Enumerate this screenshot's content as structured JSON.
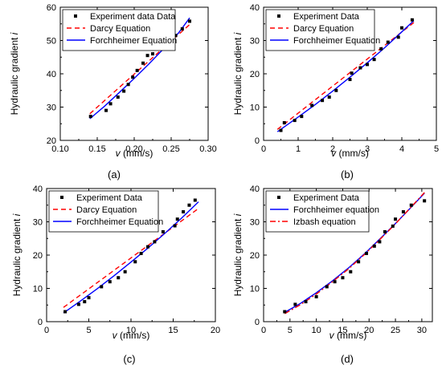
{
  "colors": {
    "experiment": "#000000",
    "darcy": "#ff0000",
    "forchheimer": "#0000ff",
    "izbash": "#ff0000"
  },
  "chart_data": [
    {
      "id": "a",
      "type": "scatter",
      "caption": "(a)",
      "xlabel_var": "v",
      "xlabel_unit": " (mm/s)",
      "ylabel": "Hydraulic gradient ",
      "ylabel_var": "i",
      "xlim": [
        0.1,
        0.3
      ],
      "ylim": [
        20,
        60
      ],
      "xticks": [
        "0.10",
        "0.15",
        "0.20",
        "0.25",
        "0.30"
      ],
      "xtick_values": [
        0.1,
        0.15,
        0.2,
        0.25,
        0.3
      ],
      "yticks": [
        "20",
        "30",
        "40",
        "50",
        "60"
      ],
      "ytick_values": [
        20,
        30,
        40,
        50,
        60
      ],
      "legend_position": "top-left",
      "series": [
        {
          "name": "Experiment data Data",
          "kind": "points",
          "x": [
            0.141,
            0.162,
            0.168,
            0.178,
            0.186,
            0.192,
            0.198,
            0.204,
            0.212,
            0.218,
            0.225,
            0.236,
            0.24,
            0.256,
            0.265,
            0.275
          ],
          "y": [
            27.2,
            29.0,
            31.0,
            33.0,
            34.8,
            36.8,
            39.0,
            41.0,
            43.2,
            45.5,
            46.0,
            48.0,
            49.5,
            51.5,
            53.5,
            55.8
          ]
        },
        {
          "name": "Darcy Equation",
          "kind": "dash",
          "x": [
            0.14,
            0.275
          ],
          "y": [
            28.0,
            54.8
          ]
        },
        {
          "name": "Forchheimer Equation",
          "kind": "solid",
          "x": [
            0.14,
            0.16,
            0.18,
            0.2,
            0.22,
            0.24,
            0.26,
            0.275
          ],
          "y": [
            26.5,
            30.3,
            34.4,
            38.6,
            43.0,
            47.6,
            52.3,
            56.8
          ]
        }
      ]
    },
    {
      "id": "b",
      "type": "scatter",
      "caption": "(b)",
      "xlabel_var": "v",
      "xlabel_unit": " (mm/s)",
      "ylabel": "Hydraulic gradient ",
      "ylabel_var": "i",
      "xlim": [
        0,
        5
      ],
      "ylim": [
        0,
        40
      ],
      "xticks": [
        "0",
        "1",
        "2",
        "3",
        "4",
        "5"
      ],
      "xtick_values": [
        0,
        1,
        2,
        3,
        4,
        5
      ],
      "yticks": [
        "0",
        "10",
        "20",
        "30",
        "40"
      ],
      "ytick_values": [
        0,
        10,
        20,
        30,
        40
      ],
      "legend_position": "top-left",
      "series": [
        {
          "name": "Experiment Data",
          "kind": "points",
          "x": [
            0.5,
            0.6,
            0.9,
            1.1,
            1.4,
            1.7,
            1.9,
            2.1,
            2.5,
            2.55,
            2.8,
            3.0,
            3.2,
            3.4,
            3.6,
            3.9,
            4.0,
            4.3
          ],
          "y": [
            3.0,
            5.3,
            6.0,
            7.2,
            10.5,
            12.0,
            13.0,
            15.0,
            18.3,
            20.2,
            21.8,
            22.8,
            24.3,
            27.5,
            29.5,
            31.0,
            33.8,
            36.2
          ]
        },
        {
          "name": "Darcy Equation",
          "kind": "dash",
          "x": [
            0.4,
            4.35
          ],
          "y": [
            3.3,
            35.4
          ]
        },
        {
          "name": "Forchheimer Equation",
          "kind": "solid",
          "x": [
            0.4,
            1.0,
            1.5,
            2.0,
            2.5,
            3.0,
            3.5,
            4.0,
            4.35
          ],
          "y": [
            2.6,
            7.0,
            10.8,
            14.8,
            19.0,
            23.3,
            27.8,
            32.6,
            36.0
          ]
        }
      ]
    },
    {
      "id": "c",
      "type": "scatter",
      "caption": "(c)",
      "xlabel_var": "v",
      "xlabel_unit": " (mm/s)",
      "ylabel": "Hydraulic gradient ",
      "ylabel_var": "i",
      "xlim": [
        0,
        20
      ],
      "ylim": [
        0,
        40
      ],
      "xticks": [
        "0",
        "5",
        "10",
        "15",
        "20"
      ],
      "xtick_values": [
        0,
        5,
        10,
        15,
        20
      ],
      "yticks": [
        "0",
        "10",
        "20",
        "30",
        "40"
      ],
      "ytick_values": [
        0,
        10,
        20,
        30,
        40
      ],
      "legend_position": "top-left",
      "series": [
        {
          "name": "Experiment Data",
          "kind": "points",
          "x": [
            2.2,
            3.8,
            4.5,
            5.0,
            6.5,
            7.5,
            8.5,
            9.3,
            10.5,
            11.2,
            12.0,
            12.8,
            13.8,
            15.2,
            15.5,
            16.2,
            16.9,
            17.6
          ],
          "y": [
            3.0,
            5.2,
            6.0,
            7.2,
            10.5,
            12.0,
            13.2,
            15.0,
            18.0,
            20.5,
            22.5,
            24.0,
            27.0,
            28.8,
            30.8,
            33.0,
            35.0,
            36.5
          ]
        },
        {
          "name": "Darcy Equation",
          "kind": "dash",
          "x": [
            2.0,
            18.0
          ],
          "y": [
            4.3,
            34.0
          ]
        },
        {
          "name": "Forchheimer Equation",
          "kind": "solid",
          "x": [
            2.0,
            4.0,
            6.0,
            8.0,
            10.0,
            12.0,
            14.0,
            16.0,
            18.0
          ],
          "y": [
            2.6,
            6.2,
            9.9,
            13.8,
            17.9,
            22.1,
            26.5,
            31.1,
            36.0
          ]
        }
      ]
    },
    {
      "id": "d",
      "type": "scatter",
      "caption": "(d)",
      "xlabel_var": "v",
      "xlabel_unit": " (mm/s)",
      "ylabel": "Hydraulic gradient ",
      "ylabel_var": "i",
      "xlim": [
        0,
        32
      ],
      "ylim": [
        0,
        40
      ],
      "xticks": [
        "0",
        "5",
        "10",
        "15",
        "20",
        "25",
        "30"
      ],
      "xtick_values": [
        0,
        5,
        10,
        15,
        20,
        25,
        30
      ],
      "yticks": [
        "0",
        "10",
        "20",
        "30",
        "40"
      ],
      "ytick_values": [
        0,
        10,
        20,
        30,
        40
      ],
      "legend_position": "top-left",
      "series": [
        {
          "name": "Experiment Data",
          "kind": "points",
          "x": [
            4.0,
            6.0,
            8.0,
            10.0,
            12.0,
            13.5,
            15.0,
            16.5,
            18.0,
            19.5,
            21.0,
            22.0,
            23.0,
            24.5,
            25.0,
            26.5,
            28.0,
            30.5
          ],
          "y": [
            3.0,
            5.2,
            6.0,
            7.5,
            10.5,
            12.0,
            13.2,
            15.0,
            18.0,
            20.5,
            22.7,
            24.0,
            27.0,
            28.7,
            30.8,
            33.0,
            35.0,
            36.3
          ]
        },
        {
          "name": "Forchheimer equation",
          "kind": "solid",
          "x": [
            4,
            7,
            10,
            13,
            16,
            19,
            22,
            25,
            28,
            30.5
          ],
          "y": [
            2.8,
            5.5,
            8.7,
            12.2,
            16.0,
            20.2,
            24.8,
            29.5,
            34.4,
            38.6
          ]
        },
        {
          "name": "Izbash equation",
          "kind": "dashdot",
          "x": [
            4,
            7,
            10,
            13,
            16,
            19,
            22,
            25,
            28,
            30.5
          ],
          "y": [
            2.4,
            5.1,
            8.3,
            11.9,
            15.7,
            20.0,
            24.6,
            29.4,
            34.5,
            38.8
          ]
        }
      ]
    }
  ]
}
